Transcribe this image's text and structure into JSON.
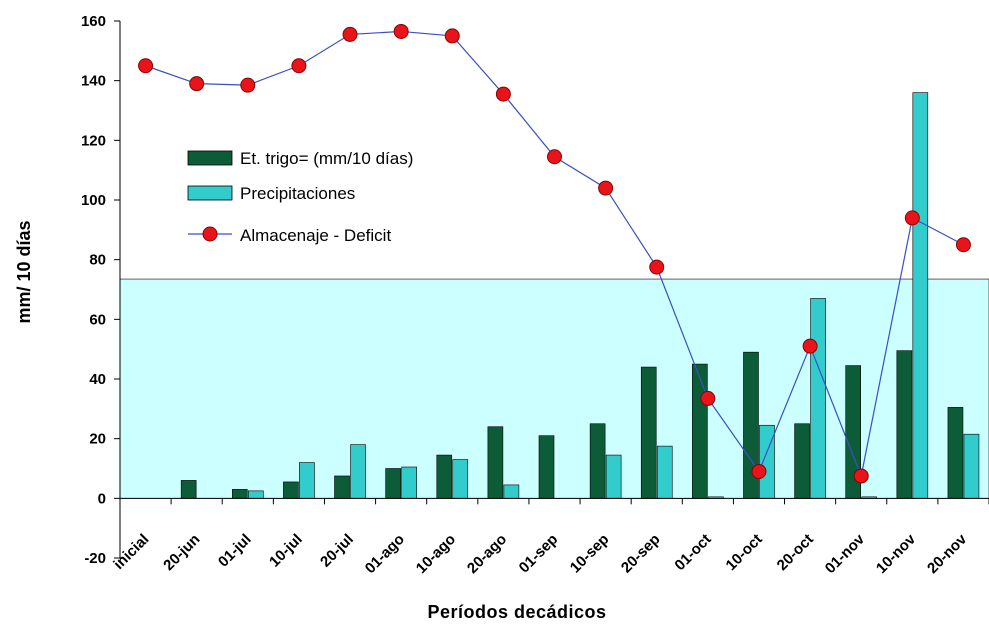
{
  "chart_data": {
    "type": "bar",
    "title": "",
    "xlabel": "Períodos decádicos",
    "ylabel": "mm/ 10 días",
    "ylim": [
      -20,
      160
    ],
    "yticks": [
      -20,
      0,
      20,
      40,
      60,
      80,
      100,
      120,
      140,
      160
    ],
    "grid": false,
    "legend_position": "center-left",
    "categories": [
      "inicial",
      "20-jun",
      "01-jul",
      "10-jul",
      "20-jul",
      "01-ago",
      "10-ago",
      "20-ago",
      "01-sep",
      "10-sep",
      "20-sep",
      "01-oct",
      "10-oct",
      "20-oct",
      "01-nov",
      "10-nov",
      "20-nov"
    ],
    "series": [
      {
        "name": "Et. trigo= (mm/10 días)",
        "type": "bar",
        "color": "#0d5c38",
        "values": [
          0,
          6,
          3,
          5.5,
          7.5,
          10,
          14.5,
          24,
          21,
          25,
          44,
          45,
          49,
          25,
          44.5,
          49.5,
          30.5
        ]
      },
      {
        "name": "Precipitaciones",
        "type": "bar",
        "color": "#33cccc",
        "values": [
          0,
          0,
          2.5,
          12,
          18,
          10.5,
          13,
          4.5,
          0,
          14.5,
          17.5,
          0.5,
          24.5,
          67,
          0.5,
          136,
          21.5
        ]
      },
      {
        "name": "Almacenaje - Deficit",
        "type": "line",
        "color": "#3b4ec6",
        "marker_color": "#e8141a",
        "values": [
          145,
          139,
          138.5,
          145,
          155.5,
          156.5,
          155,
          135.5,
          114.5,
          104,
          77.5,
          33.5,
          9,
          51,
          7.5,
          94,
          85
        ]
      }
    ],
    "reference_band": {
      "from": 0,
      "to": 73.5,
      "color": "#ccffff"
    }
  }
}
